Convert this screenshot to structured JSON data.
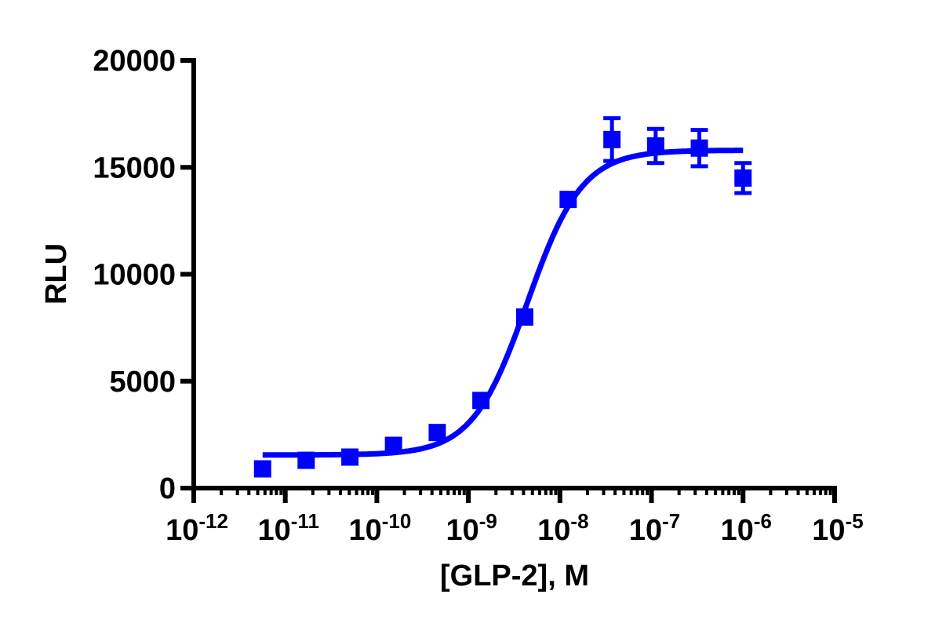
{
  "chart_data": {
    "type": "scatter",
    "title": "",
    "xlabel": "[GLP-2], M",
    "ylabel": "RLU",
    "x_scale": "log",
    "xlim": [
      1e-12,
      1e-05
    ],
    "ylim": [
      0,
      20000
    ],
    "x_tick_labels": [
      {
        "base": "10",
        "exp": "-12"
      },
      {
        "base": "10",
        "exp": "-11"
      },
      {
        "base": "10",
        "exp": "-10"
      },
      {
        "base": "10",
        "exp": "-9"
      },
      {
        "base": "10",
        "exp": "-8"
      },
      {
        "base": "10",
        "exp": "-7"
      },
      {
        "base": "10",
        "exp": "-6"
      },
      {
        "base": "10",
        "exp": "-5"
      }
    ],
    "y_ticks": [
      0,
      5000,
      10000,
      15000,
      20000
    ],
    "y_tick_labels": [
      "0",
      "5000",
      "10000",
      "15000",
      "20000"
    ],
    "grid": false,
    "color": "#0000ff",
    "series": [
      {
        "marker": "square",
        "x": [
          5.65e-12,
          1.69e-11,
          5.08e-11,
          1.52e-10,
          4.57e-10,
          1.37e-09,
          4.12e-09,
          1.23e-08,
          3.7e-08,
          1.11e-07,
          3.33e-07,
          1e-06
        ],
        "y": [
          900,
          1300,
          1450,
          2000,
          2600,
          4100,
          8000,
          13500,
          16300,
          16000,
          15900,
          14500
        ],
        "error": [
          0,
          0,
          0,
          0,
          0,
          0,
          0,
          0,
          1000,
          800,
          850,
          700
        ]
      }
    ],
    "fit": {
      "model": "sigmoidal dose-response",
      "bottom": 1550,
      "top": 15800,
      "ec50": 4.4e-09,
      "hill": 1.45,
      "x_range": [
        5.65e-12,
        1e-06
      ]
    }
  }
}
